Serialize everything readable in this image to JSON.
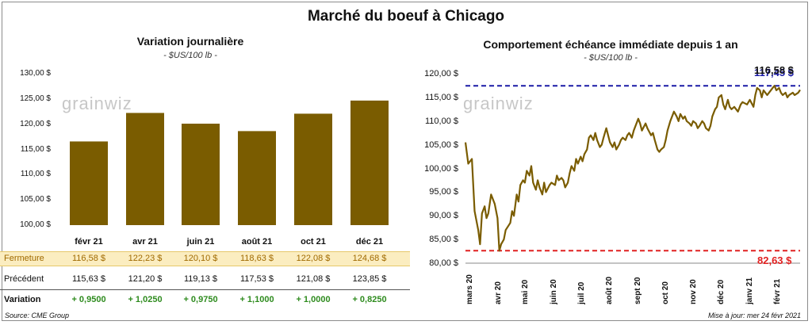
{
  "title": "Marché du boeuf à Chicago",
  "left": {
    "subtitle": "Variation  journalière",
    "unit": "- $US/100 lb -",
    "watermark": "grainwiz",
    "yticks": [
      "130,00 $",
      "125,00 $",
      "120,00 $",
      "115,00 $",
      "110,00 $",
      "105,00 $",
      "100,00 $"
    ],
    "table": {
      "fermeture_label": "Fermeture",
      "fermeture": [
        "116,58  $",
        "122,23  $",
        "120,10  $",
        "118,63  $",
        "122,08  $",
        "124,68  $"
      ],
      "precedent_label": "Précédent",
      "precedent": [
        "115,63  $",
        "121,20  $",
        "119,13  $",
        "117,53  $",
        "121,08  $",
        "123,85  $"
      ],
      "variation_label": "Variation",
      "variation": [
        "+ 0,9500",
        "+ 1,0250",
        "+ 0,9750",
        "+ 1,1000",
        "+ 1,0000",
        "+ 0,8250"
      ]
    },
    "source": "Source: CME Group"
  },
  "right": {
    "subtitle": "Comportement  échéance immédiate depuis 1 an",
    "unit": "- $US/100 lb -",
    "watermark": "grainwiz",
    "yticks": [
      "120,00 $",
      "115,00 $",
      "110,00 $",
      "105,00 $",
      "100,00 $",
      "95,00 $",
      "90,00 $",
      "85,00 $",
      "80,00 $"
    ],
    "xticks": [
      "mars 20",
      "avr 20",
      "mai 20",
      "juin 20",
      "juil 20",
      "août 20",
      "sept 20",
      "oct 20",
      "nov 20",
      "déc 20",
      "janv 21",
      "févr 21"
    ],
    "max_label": "117,45 $",
    "last_label": "116,58 $",
    "min_label": "82,63 $",
    "updated": "Mise à jour: mer 24 févr 2021"
  },
  "colors": {
    "bar": "#7a5c00",
    "line": "#7a5c00",
    "max": "#1a1aa6",
    "min": "#e02020",
    "green": "#2e8b1e",
    "band": "#fbedc0"
  },
  "chart_data": [
    {
      "type": "bar",
      "title": "Variation  journalière",
      "ylabel": "- $US/100 lb -",
      "categories": [
        "févr 21",
        "avr 21",
        "juin 21",
        "août 21",
        "oct 21",
        "déc 21"
      ],
      "values": [
        116.58,
        122.23,
        120.1,
        118.63,
        122.08,
        124.68
      ],
      "ylim": [
        100,
        130
      ],
      "grid": false
    },
    {
      "type": "line",
      "title": "Comportement  échéance immédiate depuis 1 an",
      "ylabel": "- $US/100 lb -",
      "ylim": [
        80,
        120
      ],
      "xlim": [
        "2020-02-24",
        "2021-02-24"
      ],
      "series": [
        {
          "points": [
            [
              "2020-02-24",
              105.5
            ],
            [
              "2020-02-27",
              101.0
            ],
            [
              "2020-03-02",
              102.0
            ],
            [
              "2020-03-05",
              91.0
            ],
            [
              "2020-03-09",
              87.0
            ],
            [
              "2020-03-11",
              84.0
            ],
            [
              "2020-03-13",
              90.5
            ],
            [
              "2020-03-16",
              92.0
            ],
            [
              "2020-03-18",
              89.5
            ],
            [
              "2020-03-20",
              90.5
            ],
            [
              "2020-03-23",
              94.5
            ],
            [
              "2020-03-25",
              93.5
            ],
            [
              "2020-03-27",
              92.5
            ],
            [
              "2020-03-30",
              89.5
            ],
            [
              "2020-04-01",
              82.63
            ],
            [
              "2020-04-03",
              84.0
            ],
            [
              "2020-04-06",
              85.0
            ],
            [
              "2020-04-08",
              87.0
            ],
            [
              "2020-04-13",
              88.5
            ],
            [
              "2020-04-15",
              91.0
            ],
            [
              "2020-04-17",
              90.0
            ],
            [
              "2020-04-20",
              94.5
            ],
            [
              "2020-04-22",
              93.0
            ],
            [
              "2020-04-24",
              96.5
            ],
            [
              "2020-04-27",
              97.5
            ],
            [
              "2020-04-29",
              97.0
            ],
            [
              "2020-05-01",
              99.5
            ],
            [
              "2020-05-04",
              98.5
            ],
            [
              "2020-05-06",
              100.5
            ],
            [
              "2020-05-08",
              97.0
            ],
            [
              "2020-05-11",
              95.5
            ],
            [
              "2020-05-13",
              97.5
            ],
            [
              "2020-05-15",
              96.0
            ],
            [
              "2020-05-18",
              94.5
            ],
            [
              "2020-05-20",
              97.0
            ],
            [
              "2020-05-22",
              95.0
            ],
            [
              "2020-05-26",
              96.5
            ],
            [
              "2020-05-28",
              97.0
            ],
            [
              "2020-06-01",
              96.5
            ],
            [
              "2020-06-03",
              98.5
            ],
            [
              "2020-06-05",
              97.5
            ],
            [
              "2020-06-08",
              98.0
            ],
            [
              "2020-06-10",
              97.5
            ],
            [
              "2020-06-12",
              96.0
            ],
            [
              "2020-06-15",
              97.0
            ],
            [
              "2020-06-17",
              99.0
            ],
            [
              "2020-06-19",
              100.5
            ],
            [
              "2020-06-22",
              99.5
            ],
            [
              "2020-06-24",
              102.0
            ],
            [
              "2020-06-26",
              101.0
            ],
            [
              "2020-06-29",
              102.5
            ],
            [
              "2020-07-01",
              101.5
            ],
            [
              "2020-07-03",
              103.0
            ],
            [
              "2020-07-06",
              104.0
            ],
            [
              "2020-07-08",
              106.5
            ],
            [
              "2020-07-10",
              107.0
            ],
            [
              "2020-07-13",
              106.0
            ],
            [
              "2020-07-15",
              107.5
            ],
            [
              "2020-07-17",
              106.0
            ],
            [
              "2020-07-20",
              104.5
            ],
            [
              "2020-07-22",
              105.0
            ],
            [
              "2020-07-24",
              106.5
            ],
            [
              "2020-07-27",
              108.5
            ],
            [
              "2020-07-29",
              107.0
            ],
            [
              "2020-07-31",
              105.5
            ],
            [
              "2020-08-03",
              104.5
            ],
            [
              "2020-08-05",
              105.5
            ],
            [
              "2020-08-07",
              104.0
            ],
            [
              "2020-08-10",
              105.0
            ],
            [
              "2020-08-12",
              106.0
            ],
            [
              "2020-08-14",
              106.5
            ],
            [
              "2020-08-17",
              106.0
            ],
            [
              "2020-08-19",
              107.0
            ],
            [
              "2020-08-21",
              107.5
            ],
            [
              "2020-08-24",
              106.5
            ],
            [
              "2020-08-26",
              108.0
            ],
            [
              "2020-08-28",
              109.0
            ],
            [
              "2020-08-31",
              110.5
            ],
            [
              "2020-09-02",
              109.5
            ],
            [
              "2020-09-04",
              108.0
            ],
            [
              "2020-09-08",
              109.5
            ],
            [
              "2020-09-10",
              108.5
            ],
            [
              "2020-09-14",
              107.0
            ],
            [
              "2020-09-16",
              107.5
            ],
            [
              "2020-09-18",
              106.0
            ],
            [
              "2020-09-21",
              104.0
            ],
            [
              "2020-09-23",
              103.5
            ],
            [
              "2020-09-25",
              104.0
            ],
            [
              "2020-09-28",
              104.5
            ],
            [
              "2020-09-30",
              106.0
            ],
            [
              "2020-10-02",
              108.0
            ],
            [
              "2020-10-05",
              110.0
            ],
            [
              "2020-10-07",
              111.0
            ],
            [
              "2020-10-09",
              112.0
            ],
            [
              "2020-10-12",
              111.0
            ],
            [
              "2020-10-14",
              110.0
            ],
            [
              "2020-10-16",
              111.5
            ],
            [
              "2020-10-19",
              110.5
            ],
            [
              "2020-10-21",
              111.0
            ],
            [
              "2020-10-23",
              110.0
            ],
            [
              "2020-10-26",
              109.5
            ],
            [
              "2020-10-28",
              109.0
            ],
            [
              "2020-10-30",
              110.0
            ],
            [
              "2020-11-02",
              109.5
            ],
            [
              "2020-11-04",
              108.5
            ],
            [
              "2020-11-06",
              109.0
            ],
            [
              "2020-11-09",
              110.0
            ],
            [
              "2020-11-11",
              109.5
            ],
            [
              "2020-11-13",
              108.5
            ],
            [
              "2020-11-16",
              108.0
            ],
            [
              "2020-11-18",
              109.0
            ],
            [
              "2020-11-20",
              111.0
            ],
            [
              "2020-11-23",
              112.5
            ],
            [
              "2020-11-25",
              113.0
            ],
            [
              "2020-11-27",
              115.0
            ],
            [
              "2020-11-30",
              115.5
            ],
            [
              "2020-12-02",
              113.5
            ],
            [
              "2020-12-04",
              112.5
            ],
            [
              "2020-12-07",
              114.5
            ],
            [
              "2020-12-09",
              113.0
            ],
            [
              "2020-12-11",
              112.5
            ],
            [
              "2020-12-14",
              113.0
            ],
            [
              "2020-12-16",
              112.5
            ],
            [
              "2020-12-18",
              112.0
            ],
            [
              "2020-12-21",
              113.5
            ],
            [
              "2020-12-23",
              114.0
            ],
            [
              "2020-12-28",
              113.5
            ],
            [
              "2020-12-31",
              114.5
            ],
            [
              "2021-01-04",
              113.0
            ],
            [
              "2021-01-06",
              115.5
            ],
            [
              "2021-01-08",
              117.0
            ],
            [
              "2021-01-11",
              116.5
            ],
            [
              "2021-01-13",
              115.0
            ],
            [
              "2021-01-15",
              116.5
            ],
            [
              "2021-01-19",
              115.5
            ],
            [
              "2021-01-21",
              116.0
            ],
            [
              "2021-01-25",
              117.0
            ],
            [
              "2021-01-27",
              117.45
            ],
            [
              "2021-01-29",
              116.5
            ],
            [
              "2021-02-01",
              117.0
            ],
            [
              "2021-02-03",
              116.0
            ],
            [
              "2021-02-05",
              115.5
            ],
            [
              "2021-02-08",
              116.0
            ],
            [
              "2021-02-10",
              115.0
            ],
            [
              "2021-02-12",
              115.5
            ],
            [
              "2021-02-16",
              116.0
            ],
            [
              "2021-02-18",
              115.5
            ],
            [
              "2021-02-22",
              116.0
            ],
            [
              "2021-02-24",
              116.58
            ]
          ]
        }
      ],
      "reference_lines": [
        {
          "label": "117,45 $",
          "value": 117.45,
          "color": "#1a1aa6"
        },
        {
          "label": "82,63 $",
          "value": 82.63,
          "color": "#e02020"
        }
      ],
      "last_value": 116.58
    }
  ]
}
